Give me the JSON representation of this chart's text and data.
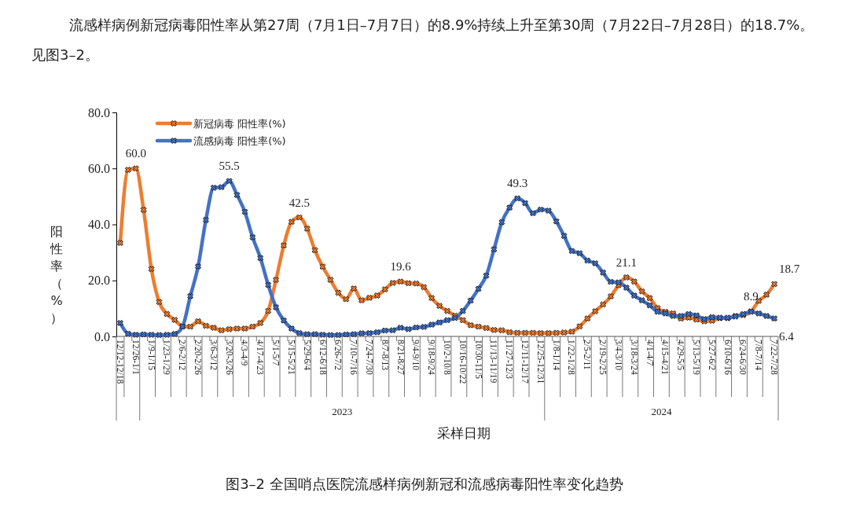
{
  "chart_data": {
    "type": "line",
    "title": "图3–2 全国哨点医院流感样病例新冠和流感病毒阳性率变化趋势",
    "subtitle": "流感样病例新冠病毒阳性率从第27周（7月1日–7月7日）的8.9%持续上升至第30周（7月22日–7月28日）的18.7%。见图3–2。",
    "xlabel": "采样日期",
    "ylabel": "阳性率（%）",
    "categories": [
      "12/12-12/18",
      null,
      "12/26-1/1",
      null,
      "1/9-1/15",
      null,
      "1/23-1/29",
      null,
      "2/6-2/12",
      null,
      "2/20-2/26",
      null,
      "3/6-3/12",
      null,
      "3/20-3/26",
      null,
      "4/3-4/9",
      null,
      "4/17-4/23",
      null,
      "5/1-5/7",
      null,
      "5/15-5/21",
      null,
      "5/29-6/4",
      null,
      "6/12-6/18",
      null,
      "6/26-7/2",
      null,
      "7/10-7/16",
      null,
      "7/24-7/30",
      null,
      "8/7-8/13",
      null,
      "8/21-8/27",
      null,
      "9/4-9/10",
      null,
      "9/18-9/24",
      null,
      "10/2-10/8",
      null,
      "10/16-10/22",
      null,
      "10/30-11/5",
      null,
      "11/13-11/19",
      null,
      "11/27-12/3",
      null,
      "12/11-12/17",
      null,
      "12/25-12/31",
      null,
      "1/8-1/14",
      null,
      "1/22-1/28",
      null,
      "2/5-2/11",
      null,
      "2/19-2/25",
      null,
      "3/4-3/10",
      null,
      "3/18-3/24",
      null,
      "4/1-4/7",
      null,
      "4/15-4/21",
      null,
      "4/29-5/5",
      null,
      "5/13-5/19",
      null,
      "5/27-6/2",
      null,
      "6/10-6/16",
      null,
      "6/24-6/30",
      null,
      "7/8-7/14",
      null,
      "7/22-7/28"
    ],
    "series": [
      {
        "name": "新冠病毒 阳性率(%)",
        "color": "#ed7d31",
        "values": [
          33.4,
          59.5,
          60.0,
          45.2,
          24.1,
          12.3,
          8.0,
          5.9,
          3.6,
          3.5,
          5.4,
          3.8,
          3.1,
          2.2,
          2.6,
          2.8,
          2.8,
          3.5,
          4.8,
          9.1,
          20.2,
          32.5,
          40.9,
          42.5,
          38.5,
          30.8,
          24.9,
          20.2,
          15.6,
          13.3,
          17.1,
          12.9,
          13.8,
          14.6,
          16.8,
          19.1,
          19.6,
          19.0,
          18.9,
          17.6,
          13.7,
          10.9,
          9.1,
          7.4,
          5.8,
          4.0,
          3.5,
          3.0,
          2.3,
          2.2,
          1.5,
          1.3,
          1.3,
          1.3,
          1.2,
          1.2,
          1.3,
          1.4,
          1.7,
          3.6,
          6.4,
          9.0,
          11.4,
          14.3,
          18.3,
          21.1,
          19.6,
          16.1,
          13.7,
          10.1,
          8.8,
          8.2,
          6.4,
          6.7,
          6.0,
          5.4,
          5.6,
          6.5,
          6.5,
          7.3,
          7.6,
          8.9,
          12.7,
          14.9,
          18.7
        ],
        "value_labels": [
          null,
          null,
          "60.0",
          null,
          null,
          null,
          null,
          null,
          null,
          null,
          null,
          null,
          null,
          null,
          null,
          null,
          null,
          null,
          null,
          null,
          null,
          null,
          null,
          "42.5",
          null,
          null,
          null,
          null,
          null,
          null,
          null,
          null,
          null,
          null,
          null,
          null,
          "19.6",
          null,
          null,
          null,
          null,
          null,
          null,
          null,
          null,
          null,
          null,
          null,
          null,
          null,
          null,
          null,
          null,
          null,
          null,
          null,
          null,
          null,
          null,
          null,
          null,
          null,
          null,
          null,
          null,
          "21.1",
          null,
          null,
          null,
          null,
          null,
          null,
          null,
          null,
          null,
          null,
          null,
          null,
          null,
          null,
          null,
          "8.9",
          null,
          null,
          "18.7"
        ]
      },
      {
        "name": "流感病毒 阳性率(%)",
        "color": "#4472c4",
        "values": [
          4.8,
          1.0,
          0.6,
          0.7,
          0.6,
          0.5,
          0.6,
          0.9,
          3.5,
          14.4,
          25.0,
          41.6,
          53.1,
          53.3,
          55.5,
          50.5,
          44.5,
          35.4,
          28.0,
          18.4,
          10.4,
          5.7,
          2.8,
          1.2,
          0.8,
          0.8,
          0.6,
          0.5,
          0.5,
          0.7,
          0.8,
          1.1,
          1.2,
          1.5,
          2.1,
          2.2,
          3.1,
          2.6,
          3.2,
          3.4,
          4.2,
          5.0,
          5.8,
          6.6,
          9.1,
          12.8,
          17.0,
          21.7,
          31.1,
          40.8,
          46.0,
          49.3,
          47.6,
          44.0,
          45.3,
          44.9,
          41.1,
          35.9,
          30.5,
          29.7,
          27.1,
          26.1,
          22.8,
          19.5,
          19.3,
          17.4,
          14.6,
          12.9,
          11.1,
          8.8,
          8.2,
          7.3,
          7.3,
          8.0,
          7.5,
          6.2,
          6.9,
          6.7,
          6.7,
          7.1,
          8.0,
          8.8,
          8.2,
          7.3,
          6.4
        ],
        "value_labels": [
          null,
          null,
          null,
          null,
          null,
          null,
          null,
          null,
          null,
          null,
          null,
          null,
          null,
          null,
          "55.5",
          null,
          null,
          null,
          null,
          null,
          null,
          null,
          null,
          null,
          null,
          null,
          null,
          null,
          null,
          null,
          null,
          null,
          null,
          null,
          null,
          null,
          null,
          null,
          null,
          null,
          null,
          null,
          null,
          null,
          null,
          null,
          null,
          null,
          null,
          null,
          null,
          "49.3",
          null,
          null,
          null,
          null,
          null,
          null,
          null,
          null,
          null,
          null,
          null,
          null,
          null,
          null,
          null,
          null,
          null,
          null,
          null,
          null,
          null,
          null,
          null,
          null,
          null,
          null,
          null,
          null,
          null,
          null,
          null,
          null,
          "6.4"
        ]
      }
    ],
    "ylim": [
      0,
      80
    ],
    "yticks": [
      {
        "value": 0,
        "label": "0.0"
      },
      {
        "value": 20,
        "label": "20.0"
      },
      {
        "value": 40,
        "label": "40.0"
      },
      {
        "value": 60,
        "label": "60.0"
      },
      {
        "value": 80,
        "label": "80.0"
      }
    ],
    "annotations": [
      "2023",
      "2024"
    ],
    "legend": "top left",
    "marker": "cross",
    "line_style": "solid",
    "grid": false
  }
}
